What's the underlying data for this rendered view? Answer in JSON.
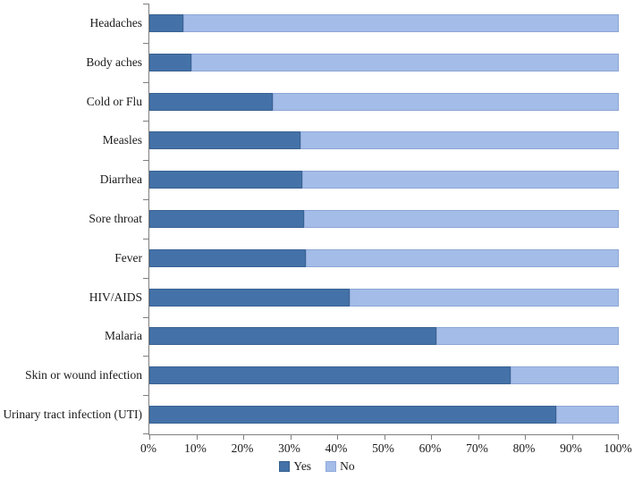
{
  "chart_data": {
    "type": "bar",
    "orientation": "horizontal",
    "stacked": true,
    "unit": "percent",
    "title": "",
    "xlabel": "",
    "ylabel": "",
    "grid": false,
    "categories": [
      "Headaches",
      "Body aches",
      "Cold or Flu",
      "Measles",
      "Diarrhea",
      "Sore throat",
      "Fever",
      "HIV/AIDS",
      "Malaria",
      "Skin or wound infection",
      "Urinary tract infection (UTI)"
    ],
    "series": [
      {
        "name": "Yes",
        "color": "#4472A8",
        "border_color": "#38608F",
        "values": [
          7.2,
          9.0,
          26.3,
          32.2,
          32.6,
          33.0,
          33.4,
          42.7,
          61.2,
          76.9,
          86.6
        ]
      },
      {
        "name": "No",
        "color": "#A4BCE8",
        "border_color": "#8FA9DB",
        "values": [
          92.8,
          91.0,
          73.7,
          67.8,
          67.4,
          67.0,
          66.6,
          57.3,
          38.8,
          23.1,
          13.4
        ]
      }
    ],
    "x_axis": {
      "min": 0,
      "max": 100,
      "tick_step": 10,
      "tick_labels": [
        "0%",
        "10%",
        "20%",
        "30%",
        "40%",
        "50%",
        "60%",
        "70%",
        "80%",
        "90%",
        "100%"
      ]
    },
    "legend": {
      "position": "bottom",
      "entries": [
        "Yes",
        "No"
      ]
    }
  },
  "colors": {
    "axis": "#7f7f7f",
    "background": "#ffffff",
    "text": "#1a1a1a"
  }
}
